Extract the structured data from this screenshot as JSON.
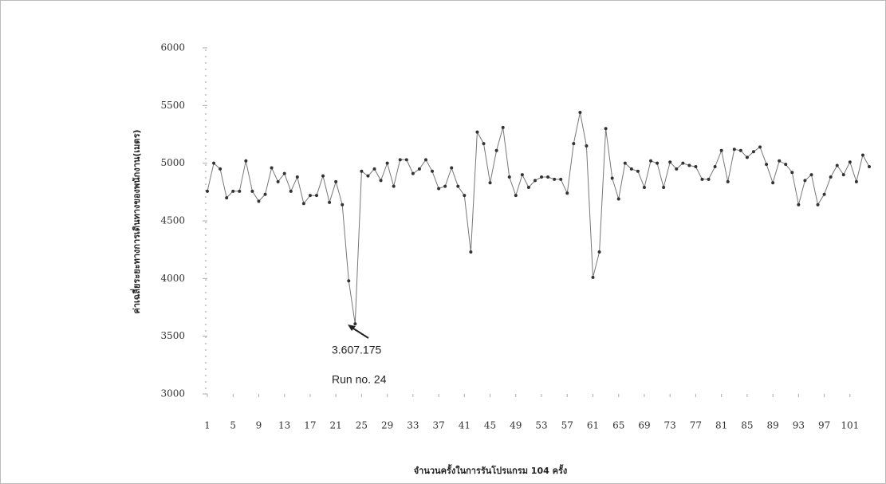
{
  "chart_data": {
    "type": "line",
    "y_label": "ค่าเฉลี่ยระยะทางการเดินทางของพนักงาน(เมตร)",
    "x_label": "จำนวนครั้งในการรันโปรแกรม 104 ครั้ง",
    "x": [
      1,
      2,
      3,
      4,
      5,
      6,
      7,
      8,
      9,
      10,
      11,
      12,
      13,
      14,
      15,
      16,
      17,
      18,
      19,
      20,
      21,
      22,
      23,
      24,
      25,
      26,
      27,
      28,
      29,
      30,
      31,
      32,
      33,
      34,
      35,
      36,
      37,
      38,
      39,
      40,
      41,
      42,
      43,
      44,
      45,
      46,
      47,
      48,
      49,
      50,
      51,
      52,
      53,
      54,
      55,
      56,
      57,
      58,
      59,
      60,
      61,
      62,
      63,
      64,
      65,
      66,
      67,
      68,
      69,
      70,
      71,
      72,
      73,
      74,
      75,
      76,
      77,
      78,
      79,
      80,
      81,
      82,
      83,
      84,
      85,
      86,
      87,
      88,
      89,
      90,
      91,
      92,
      93,
      94,
      95,
      96,
      97,
      98,
      99,
      100,
      101,
      102,
      103,
      104
    ],
    "values": [
      4757,
      5000,
      4950,
      4700,
      4757,
      4757,
      5020,
      4757,
      4670,
      4730,
      4960,
      4840,
      4910,
      4757,
      4880,
      4650,
      4720,
      4720,
      4890,
      4660,
      4840,
      4640,
      3980,
      3607.175,
      4930,
      4890,
      4950,
      4850,
      5000,
      4800,
      5030,
      5030,
      4910,
      4950,
      5030,
      4930,
      4780,
      4800,
      4960,
      4800,
      4720,
      4230,
      5270,
      5170,
      4830,
      5110,
      5310,
      4880,
      4720,
      4900,
      4790,
      4850,
      4880,
      4880,
      4860,
      4860,
      4740,
      5170,
      5440,
      5150,
      4010,
      4230,
      5300,
      4870,
      4690,
      5000,
      4950,
      4930,
      4790,
      5020,
      5000,
      4790,
      5010,
      4950,
      5000,
      4980,
      4970,
      4860,
      4860,
      4970,
      5110,
      4840,
      5120,
      5110,
      5050,
      5100,
      5140,
      4990,
      4830,
      5020,
      4990,
      4920,
      4640,
      4850,
      4900,
      4640,
      4730,
      4880,
      4980,
      4900,
      5010,
      4840,
      5070,
      4970
    ],
    "line_color": "#777777",
    "marker_color": "#333333",
    "xlim": [
      1,
      104
    ],
    "xticks": [
      1,
      5,
      9,
      13,
      17,
      21,
      25,
      29,
      33,
      37,
      41,
      45,
      49,
      53,
      57,
      61,
      65,
      69,
      73,
      77,
      81,
      85,
      89,
      93,
      97,
      101
    ],
    "ylim": [
      3000,
      6000
    ],
    "yticks": [
      3000,
      3500,
      4000,
      4500,
      5000,
      5500,
      6000
    ],
    "annotation": [
      "3.607.175",
      "Run no. 24"
    ]
  }
}
